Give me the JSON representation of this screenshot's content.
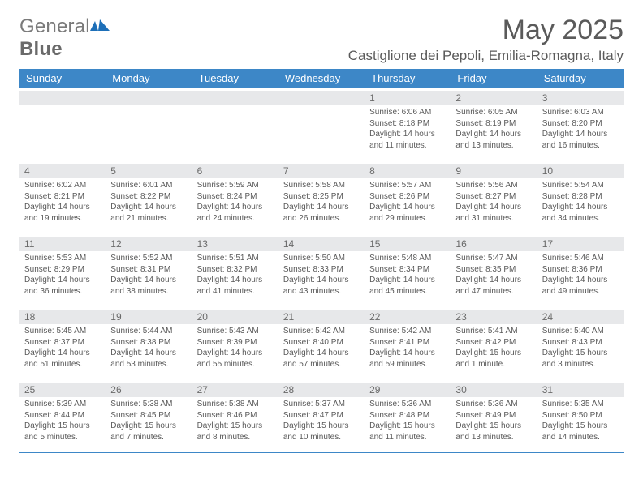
{
  "brand": {
    "part1": "General",
    "part2": "Blue",
    "colors": {
      "text": "#7a7a7a",
      "accent": "#1d6fb8"
    }
  },
  "title": "May 2025",
  "location": "Castiglione dei Pepoli, Emilia-Romagna, Italy",
  "colors": {
    "header_bg": "#3d87c7",
    "header_fg": "#ffffff",
    "strip_bg": "#e7e8ea",
    "text": "#5a5a5a",
    "rule": "#3d87c7",
    "background": "#ffffff"
  },
  "typography": {
    "title_fontsize": 34,
    "location_fontsize": 17,
    "header_fontsize": 13,
    "daynum_fontsize": 12,
    "body_fontsize": 10
  },
  "weekdays": [
    "Sunday",
    "Monday",
    "Tuesday",
    "Wednesday",
    "Thursday",
    "Friday",
    "Saturday"
  ],
  "grid": [
    [
      null,
      null,
      null,
      null,
      {
        "n": "1",
        "sr": "6:06 AM",
        "ss": "8:18 PM",
        "dl": "14 hours and 11 minutes."
      },
      {
        "n": "2",
        "sr": "6:05 AM",
        "ss": "8:19 PM",
        "dl": "14 hours and 13 minutes."
      },
      {
        "n": "3",
        "sr": "6:03 AM",
        "ss": "8:20 PM",
        "dl": "14 hours and 16 minutes."
      }
    ],
    [
      {
        "n": "4",
        "sr": "6:02 AM",
        "ss": "8:21 PM",
        "dl": "14 hours and 19 minutes."
      },
      {
        "n": "5",
        "sr": "6:01 AM",
        "ss": "8:22 PM",
        "dl": "14 hours and 21 minutes."
      },
      {
        "n": "6",
        "sr": "5:59 AM",
        "ss": "8:24 PM",
        "dl": "14 hours and 24 minutes."
      },
      {
        "n": "7",
        "sr": "5:58 AM",
        "ss": "8:25 PM",
        "dl": "14 hours and 26 minutes."
      },
      {
        "n": "8",
        "sr": "5:57 AM",
        "ss": "8:26 PM",
        "dl": "14 hours and 29 minutes."
      },
      {
        "n": "9",
        "sr": "5:56 AM",
        "ss": "8:27 PM",
        "dl": "14 hours and 31 minutes."
      },
      {
        "n": "10",
        "sr": "5:54 AM",
        "ss": "8:28 PM",
        "dl": "14 hours and 34 minutes."
      }
    ],
    [
      {
        "n": "11",
        "sr": "5:53 AM",
        "ss": "8:29 PM",
        "dl": "14 hours and 36 minutes."
      },
      {
        "n": "12",
        "sr": "5:52 AM",
        "ss": "8:31 PM",
        "dl": "14 hours and 38 minutes."
      },
      {
        "n": "13",
        "sr": "5:51 AM",
        "ss": "8:32 PM",
        "dl": "14 hours and 41 minutes."
      },
      {
        "n": "14",
        "sr": "5:50 AM",
        "ss": "8:33 PM",
        "dl": "14 hours and 43 minutes."
      },
      {
        "n": "15",
        "sr": "5:48 AM",
        "ss": "8:34 PM",
        "dl": "14 hours and 45 minutes."
      },
      {
        "n": "16",
        "sr": "5:47 AM",
        "ss": "8:35 PM",
        "dl": "14 hours and 47 minutes."
      },
      {
        "n": "17",
        "sr": "5:46 AM",
        "ss": "8:36 PM",
        "dl": "14 hours and 49 minutes."
      }
    ],
    [
      {
        "n": "18",
        "sr": "5:45 AM",
        "ss": "8:37 PM",
        "dl": "14 hours and 51 minutes."
      },
      {
        "n": "19",
        "sr": "5:44 AM",
        "ss": "8:38 PM",
        "dl": "14 hours and 53 minutes."
      },
      {
        "n": "20",
        "sr": "5:43 AM",
        "ss": "8:39 PM",
        "dl": "14 hours and 55 minutes."
      },
      {
        "n": "21",
        "sr": "5:42 AM",
        "ss": "8:40 PM",
        "dl": "14 hours and 57 minutes."
      },
      {
        "n": "22",
        "sr": "5:42 AM",
        "ss": "8:41 PM",
        "dl": "14 hours and 59 minutes."
      },
      {
        "n": "23",
        "sr": "5:41 AM",
        "ss": "8:42 PM",
        "dl": "15 hours and 1 minute."
      },
      {
        "n": "24",
        "sr": "5:40 AM",
        "ss": "8:43 PM",
        "dl": "15 hours and 3 minutes."
      }
    ],
    [
      {
        "n": "25",
        "sr": "5:39 AM",
        "ss": "8:44 PM",
        "dl": "15 hours and 5 minutes."
      },
      {
        "n": "26",
        "sr": "5:38 AM",
        "ss": "8:45 PM",
        "dl": "15 hours and 7 minutes."
      },
      {
        "n": "27",
        "sr": "5:38 AM",
        "ss": "8:46 PM",
        "dl": "15 hours and 8 minutes."
      },
      {
        "n": "28",
        "sr": "5:37 AM",
        "ss": "8:47 PM",
        "dl": "15 hours and 10 minutes."
      },
      {
        "n": "29",
        "sr": "5:36 AM",
        "ss": "8:48 PM",
        "dl": "15 hours and 11 minutes."
      },
      {
        "n": "30",
        "sr": "5:36 AM",
        "ss": "8:49 PM",
        "dl": "15 hours and 13 minutes."
      },
      {
        "n": "31",
        "sr": "5:35 AM",
        "ss": "8:50 PM",
        "dl": "15 hours and 14 minutes."
      }
    ]
  ],
  "labels": {
    "sunrise": "Sunrise:",
    "sunset": "Sunset:",
    "daylight": "Daylight:"
  }
}
